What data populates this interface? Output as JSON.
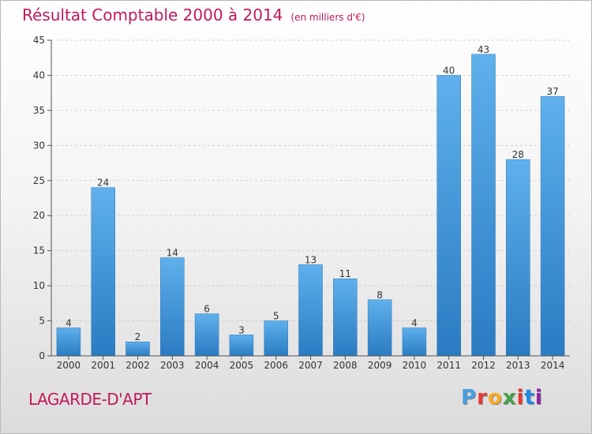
{
  "title": "Résultat Comptable 2000 à 2014",
  "subtitle": "(en milliers d'€)",
  "commune": "LAGARDE-D'APT",
  "logo": {
    "letters": [
      "P",
      "r",
      "o",
      "x",
      "i",
      "t",
      "i"
    ],
    "colors": [
      "#4a9de0",
      "#e53935",
      "#f9a825",
      "#43a047",
      "#e53935",
      "#1e88e5",
      "#8e24aa"
    ]
  },
  "colors": {
    "accent": "#c2185b",
    "bar": "#3a8fd6",
    "axis": "#555555",
    "grid": "#d0d0d0"
  },
  "chart_data": {
    "type": "bar",
    "title": "Résultat Comptable 2000 à 2014",
    "subtitle": "(en milliers d'€)",
    "categories": [
      "2000",
      "2001",
      "2002",
      "2003",
      "2004",
      "2005",
      "2006",
      "2007",
      "2008",
      "2009",
      "2010",
      "2011",
      "2012",
      "2013",
      "2014"
    ],
    "values": [
      4,
      24,
      2,
      14,
      6,
      3,
      5,
      13,
      11,
      8,
      4,
      40,
      43,
      28,
      37
    ],
    "ylim": [
      0,
      45
    ],
    "yticks": [
      0,
      5,
      10,
      15,
      20,
      25,
      30,
      35,
      40,
      45
    ],
    "grid": true,
    "data_labels": true
  }
}
